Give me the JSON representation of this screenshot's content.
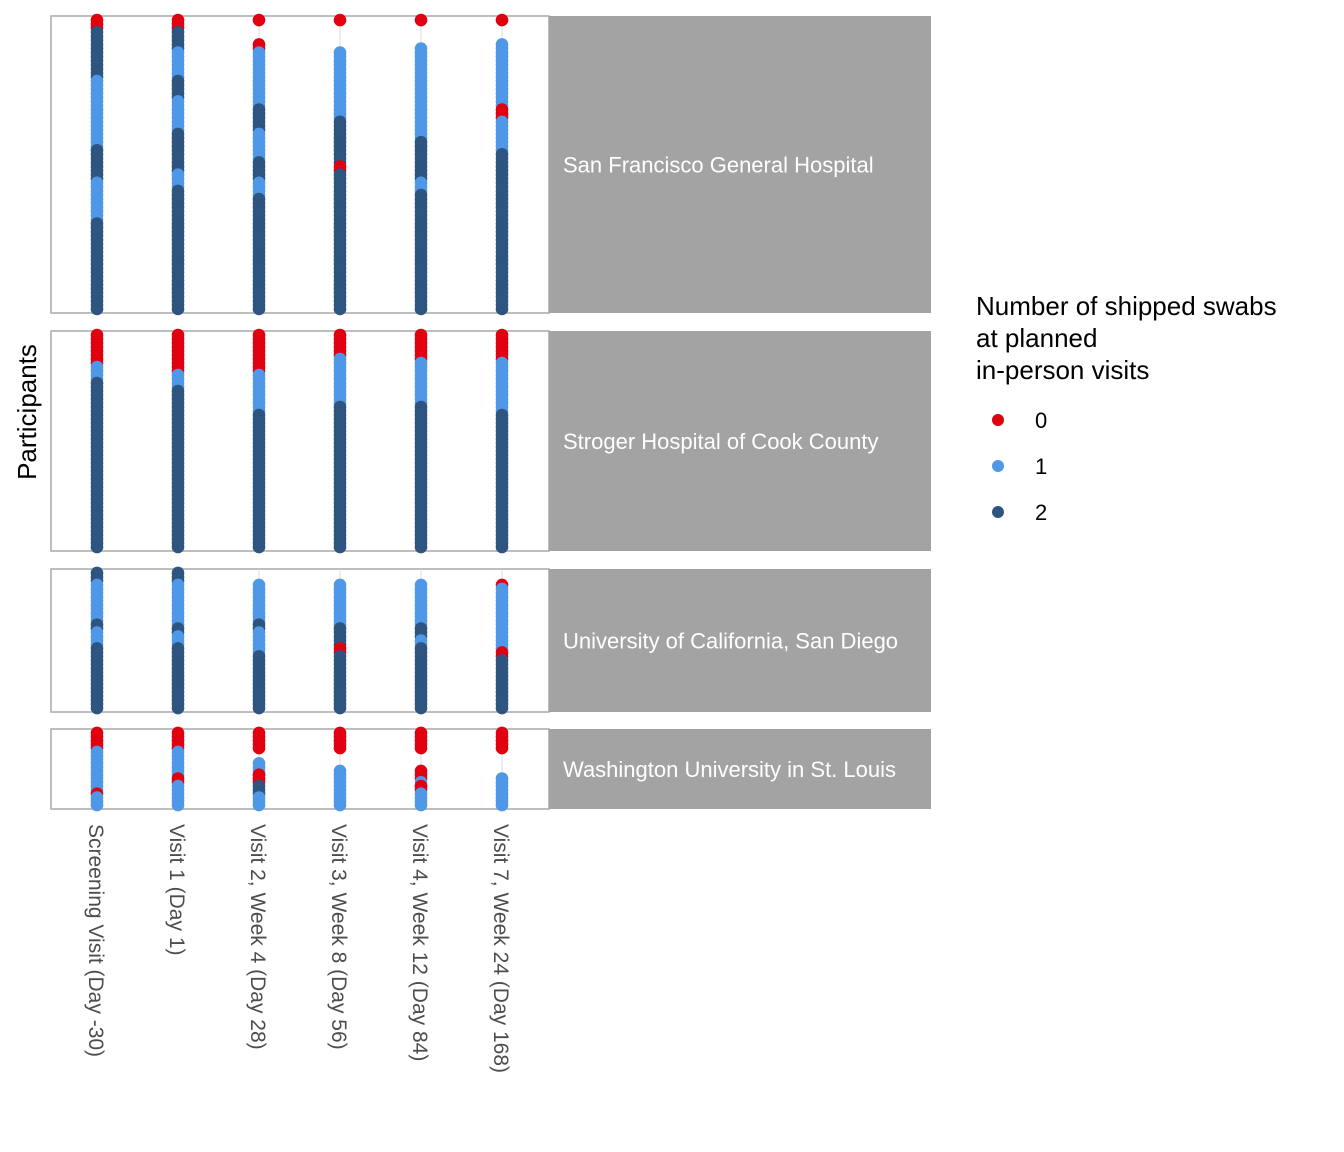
{
  "chart_data": {
    "type": "scatter",
    "ylabel": "Participants",
    "x_categories": [
      "Screening Visit (Day -30)",
      "Visit 1 (Day 1)",
      "Visit 2, Week 4 (Day 28)",
      "Visit 3, Week 8 (Day 56)",
      "Visit 4, Week 12 (Day 84)",
      "Visit 7, Week 24 (Day 168)"
    ],
    "legend": {
      "title": "Number of shipped swabs\nat planned\nin-person visits",
      "placement": "right",
      "entries": [
        {
          "label": "0",
          "color": "#e0000f"
        },
        {
          "label": "1",
          "color": "#4f98e8"
        },
        {
          "label": "2",
          "color": "#2e5480"
        }
      ]
    },
    "grid": true,
    "facets": [
      {
        "site": "San Francisco General Hospital",
        "n_participants": 72,
        "columns": [
          [
            [
              1,
              3,
              0
            ],
            [
              4,
              15,
              2
            ],
            [
              16,
              32,
              1
            ],
            [
              33,
              40,
              2
            ],
            [
              41,
              50,
              1
            ],
            [
              51,
              72,
              2
            ]
          ],
          [
            [
              1,
              3,
              0
            ],
            [
              4,
              8,
              2
            ],
            [
              9,
              15,
              1
            ],
            [
              16,
              20,
              2
            ],
            [
              21,
              28,
              1
            ],
            [
              29,
              38,
              2
            ],
            [
              39,
              42,
              1
            ],
            [
              43,
              72,
              2
            ]
          ],
          [
            [
              1,
              1,
              0
            ],
            [
              7,
              8,
              0
            ],
            [
              9,
              22,
              1
            ],
            [
              23,
              28,
              2
            ],
            [
              29,
              35,
              1
            ],
            [
              36,
              40,
              2
            ],
            [
              41,
              44,
              1
            ],
            [
              45,
              72,
              2
            ]
          ],
          [
            [
              1,
              1,
              0
            ],
            [
              9,
              25,
              1
            ],
            [
              26,
              36,
              2
            ],
            [
              37,
              38,
              0
            ],
            [
              39,
              72,
              2
            ]
          ],
          [
            [
              1,
              1,
              0
            ],
            [
              8,
              30,
              1
            ],
            [
              31,
              40,
              2
            ],
            [
              41,
              43,
              1
            ],
            [
              44,
              72,
              2
            ]
          ],
          [
            [
              1,
              1,
              0
            ],
            [
              7,
              22,
              1
            ],
            [
              23,
              25,
              0
            ],
            [
              26,
              33,
              1
            ],
            [
              34,
              72,
              2
            ]
          ]
        ]
      },
      {
        "site": "Stroger Hospital of Cook County",
        "n_participants": 54,
        "columns": [
          [
            [
              1,
              8,
              0
            ],
            [
              9,
              12,
              1
            ],
            [
              13,
              28,
              2
            ],
            [
              29,
              54,
              2
            ]
          ],
          [
            [
              1,
              6,
              0
            ],
            [
              7,
              10,
              0
            ],
            [
              11,
              14,
              1
            ],
            [
              15,
              36,
              2
            ],
            [
              37,
              54,
              2
            ]
          ],
          [
            [
              1,
              7,
              0
            ],
            [
              8,
              10,
              0
            ],
            [
              11,
              20,
              1
            ],
            [
              21,
              32,
              2
            ],
            [
              33,
              54,
              2
            ]
          ],
          [
            [
              1,
              6,
              0
            ],
            [
              7,
              18,
              1
            ],
            [
              19,
              28,
              2
            ],
            [
              29,
              34,
              2
            ],
            [
              35,
              54,
              2
            ]
          ],
          [
            [
              1,
              7,
              0
            ],
            [
              8,
              18,
              1
            ],
            [
              19,
              32,
              2
            ],
            [
              33,
              54,
              2
            ]
          ],
          [
            [
              1,
              7,
              0
            ],
            [
              8,
              20,
              1
            ],
            [
              21,
              28,
              2
            ],
            [
              29,
              54,
              2
            ]
          ]
        ]
      },
      {
        "site": "University of California, San Diego",
        "n_participants": 35,
        "columns": [
          [
            [
              1,
              3,
              2
            ],
            [
              4,
              13,
              1
            ],
            [
              14,
              15,
              2
            ],
            [
              16,
              19,
              1
            ],
            [
              20,
              35,
              2
            ]
          ],
          [
            [
              1,
              3,
              2
            ],
            [
              4,
              14,
              1
            ],
            [
              15,
              16,
              2
            ],
            [
              17,
              19,
              1
            ],
            [
              20,
              35,
              2
            ]
          ],
          [
            [
              4,
              13,
              1
            ],
            [
              14,
              15,
              2
            ],
            [
              16,
              21,
              1
            ],
            [
              22,
              35,
              2
            ]
          ],
          [
            [
              4,
              14,
              1
            ],
            [
              15,
              19,
              2
            ],
            [
              20,
              21,
              0
            ],
            [
              22,
              35,
              2
            ]
          ],
          [
            [
              4,
              14,
              1
            ],
            [
              15,
              17,
              2
            ],
            [
              18,
              19,
              1
            ],
            [
              20,
              35,
              2
            ]
          ],
          [
            [
              4,
              4,
              0
            ],
            [
              5,
              15,
              1
            ],
            [
              16,
              20,
              1
            ],
            [
              21,
              22,
              0
            ],
            [
              23,
              35,
              2
            ]
          ]
        ]
      },
      {
        "site": "Washington University in St. Louis",
        "n_participants": 20,
        "columns": [
          [
            [
              1,
              5,
              0
            ],
            [
              6,
              16,
              1
            ],
            [
              17,
              17,
              0
            ],
            [
              18,
              20,
              1
            ]
          ],
          [
            [
              1,
              5,
              0
            ],
            [
              6,
              12,
              1
            ],
            [
              13,
              14,
              0
            ],
            [
              15,
              20,
              1
            ]
          ],
          [
            [
              1,
              5,
              0
            ],
            [
              9,
              13,
              1
            ],
            [
              12,
              14,
              0
            ],
            [
              15,
              17,
              2
            ],
            [
              18,
              20,
              1
            ]
          ],
          [
            [
              1,
              5,
              0
            ],
            [
              11,
              20,
              1
            ]
          ],
          [
            [
              1,
              5,
              0
            ],
            [
              11,
              13,
              0
            ],
            [
              14,
              15,
              1
            ],
            [
              15,
              16,
              0
            ],
            [
              17,
              20,
              1
            ]
          ],
          [
            [
              1,
              5,
              0
            ],
            [
              13,
              20,
              1
            ]
          ]
        ]
      }
    ]
  }
}
